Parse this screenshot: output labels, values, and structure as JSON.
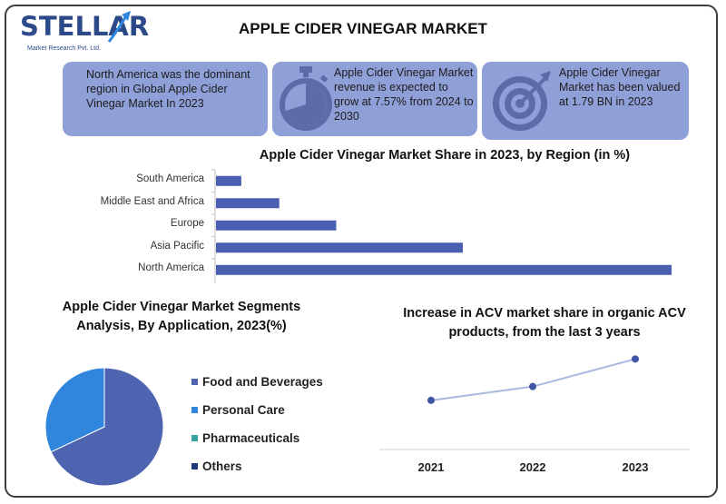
{
  "logo": {
    "name": "STELLAR",
    "sub": "Market Research Pvt. Ltd."
  },
  "title": "APPLE CIDER VINEGAR MARKET",
  "cards": [
    {
      "text": "North America was the dominant region in Global Apple Cider Vinegar Market In 2023",
      "icon": "none"
    },
    {
      "text": "Apple Cider Vinegar Market revenue is expected to grow at 7.57% from 2024 to 2030",
      "icon": "stopwatch-icon"
    },
    {
      "text": "Apple Cider Vinegar Market has been valued at 1.79 BN in 2023",
      "icon": "target-icon"
    }
  ],
  "colors": {
    "card_bg": "#8f9fd7",
    "bar": "#4a5fb0",
    "food": "#4e64b0",
    "personal": "#2f86dc",
    "pharma": "#35a2a2",
    "others": "#1f3a78",
    "line": "#a9b8df",
    "marker": "#3f56a3"
  },
  "chart_data": [
    {
      "type": "bar",
      "title": "Apple Cider Vinegar  Market Share in 2023, by Region (in %)",
      "categories": [
        "South America",
        "Middle East and Africa",
        "Europe",
        "Asia Pacific",
        "North America"
      ],
      "values": [
        4,
        10,
        19,
        39,
        72
      ],
      "xlim": [
        0,
        75
      ],
      "grid": false
    },
    {
      "type": "pie",
      "title": "Apple Cider Vinegar  Market Segments Analysis, By Application, 2023(%)",
      "categories": [
        "Food and Beverages",
        "Personal Care",
        "Pharmaceuticals",
        "Others"
      ],
      "values": [
        68,
        32,
        0,
        0
      ],
      "legend": "right"
    },
    {
      "type": "line",
      "title": "Increase in ACV market share in organic ACV products, from the last 3 years",
      "x": [
        "2021",
        "2022",
        "2023"
      ],
      "values": [
        25,
        32,
        46
      ],
      "ylim": [
        0,
        60
      ],
      "grid": false
    }
  ]
}
